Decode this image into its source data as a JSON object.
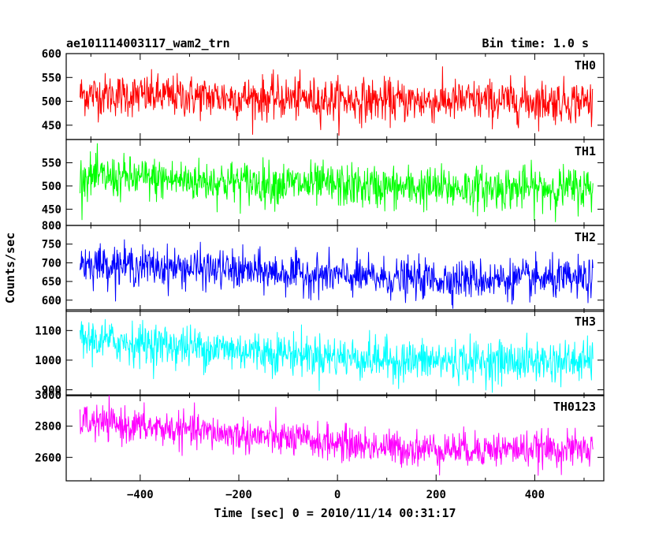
{
  "chart_data": {
    "type": "line",
    "title_left": "ae101114003117_wam2_trn",
    "title_right": "Bin time: 1.0 s",
    "xlabel": "Time [sec] 0 = 2010/11/14 00:31:17",
    "ylabel": "Counts/sec",
    "xlim": [
      -550,
      540
    ],
    "x_ticks": [
      -400,
      -200,
      0,
      200,
      400
    ],
    "x_tick_labels": [
      "−400",
      "−200",
      "0",
      "200",
      "400"
    ],
    "grid": false,
    "x_range_data": [
      -522,
      518
    ],
    "panels": [
      {
        "name": "TH0",
        "color": "#ff0000",
        "ylim": [
          420,
          600
        ],
        "y_ticks": [
          450,
          500,
          550,
          600
        ],
        "y_tick_labels": [
          "450",
          "500",
          "550",
          "600"
        ],
        "mean_start": 515,
        "mean_end": 500,
        "noise": 22
      },
      {
        "name": "TH1",
        "color": "#00ff00",
        "ylim": [
          415,
          600
        ],
        "y_ticks": [
          450,
          500,
          550
        ],
        "y_tick_labels": [
          "450",
          "500",
          "550"
        ],
        "mean_start": 520,
        "mean_end": 495,
        "noise": 23
      },
      {
        "name": "TH2",
        "color": "#0000ff",
        "ylim": [
          570,
          800
        ],
        "y_ticks": [
          600,
          650,
          700,
          750,
          800
        ],
        "y_tick_labels": [
          "600",
          "650",
          "700",
          "750",
          "800"
        ],
        "mean_start": 700,
        "mean_end": 655,
        "noise": 26
      },
      {
        "name": "TH3",
        "color": "#00ffff",
        "ylim": [
          880,
          1170
        ],
        "y_ticks": [
          900,
          1000,
          1100
        ],
        "y_tick_labels": [
          "900",
          "1000",
          "1100"
        ],
        "mean_start": 1070,
        "mean_end": 995,
        "noise": 35
      },
      {
        "name": "TH0123",
        "color": "#ff00ff",
        "ylim": [
          2450,
          3000
        ],
        "y_ticks": [
          2600,
          2800,
          3000
        ],
        "y_tick_labels": [
          "2600",
          "2800",
          "3000"
        ],
        "mean_start": 2830,
        "mean_end": 2650,
        "noise": 55
      }
    ]
  }
}
